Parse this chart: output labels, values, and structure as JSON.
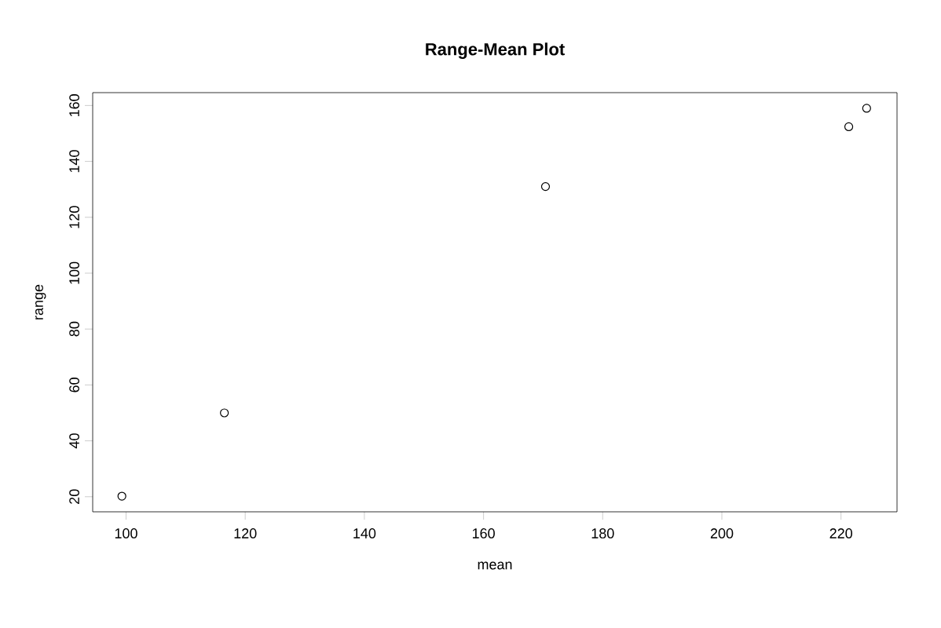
{
  "chart_data": {
    "type": "scatter",
    "title": "Range-Mean Plot",
    "xlabel": "mean",
    "ylabel": "range",
    "x": [
      99.3,
      116.5,
      170.4,
      221.3,
      224.3
    ],
    "values": [
      20.2,
      50.0,
      131.0,
      152.4,
      159.0
    ],
    "color": "#000000",
    "marker": "circle",
    "xlim": [
      94.4,
      229.4
    ],
    "ylim": [
      14.6,
      164.6
    ],
    "xticks": [
      100,
      120,
      140,
      160,
      180,
      200,
      220
    ],
    "yticks": [
      20,
      40,
      60,
      80,
      100,
      120,
      140,
      160
    ]
  }
}
